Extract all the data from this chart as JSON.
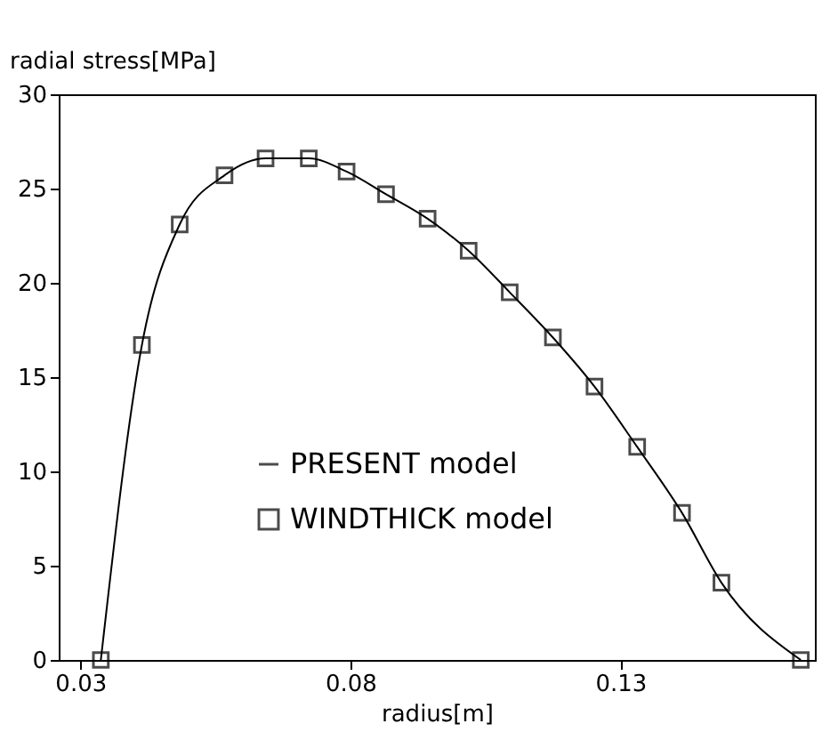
{
  "chart_data": {
    "type": "scatter",
    "xlabel": "radius[m]",
    "ylabel": "radial stress[MPa]",
    "xlim": [
      0.026,
      0.166
    ],
    "xticks": [
      0.03,
      0.08,
      0.13
    ],
    "ylim": [
      0,
      30
    ],
    "yticks": [
      0,
      5,
      10,
      15,
      20,
      25,
      30
    ],
    "grid": false,
    "legend": "bottom",
    "series": [
      {
        "name": "PRESENT model",
        "type": "line",
        "color": "#000000",
        "x": [
          0.0338,
          0.0414,
          0.0484,
          0.0567,
          0.0643,
          0.0723,
          0.0793,
          0.0866,
          0.0943,
          0.1019,
          0.1095,
          0.1175,
          0.1252,
          0.1331,
          0.1414,
          0.1487,
          0.1634
        ],
        "values": [
          0,
          16.7,
          23.1,
          25.7,
          26.6,
          26.6,
          25.9,
          24.7,
          23.4,
          21.7,
          19.5,
          17.1,
          14.5,
          11.3,
          7.8,
          4.1,
          0
        ]
      },
      {
        "name": "WINDTHICK model",
        "marker": "square",
        "color": "#000000",
        "x": [
          0.0338,
          0.0414,
          0.0484,
          0.0567,
          0.0643,
          0.0723,
          0.0793,
          0.0866,
          0.0943,
          0.1019,
          0.1095,
          0.1175,
          0.1252,
          0.1331,
          0.1414,
          0.1487,
          0.1634
        ],
        "values": [
          0,
          16.7,
          23.1,
          25.7,
          26.6,
          26.6,
          25.9,
          24.7,
          23.4,
          21.7,
          19.5,
          17.1,
          14.5,
          11.3,
          7.8,
          4.1,
          0
        ]
      }
    ]
  }
}
